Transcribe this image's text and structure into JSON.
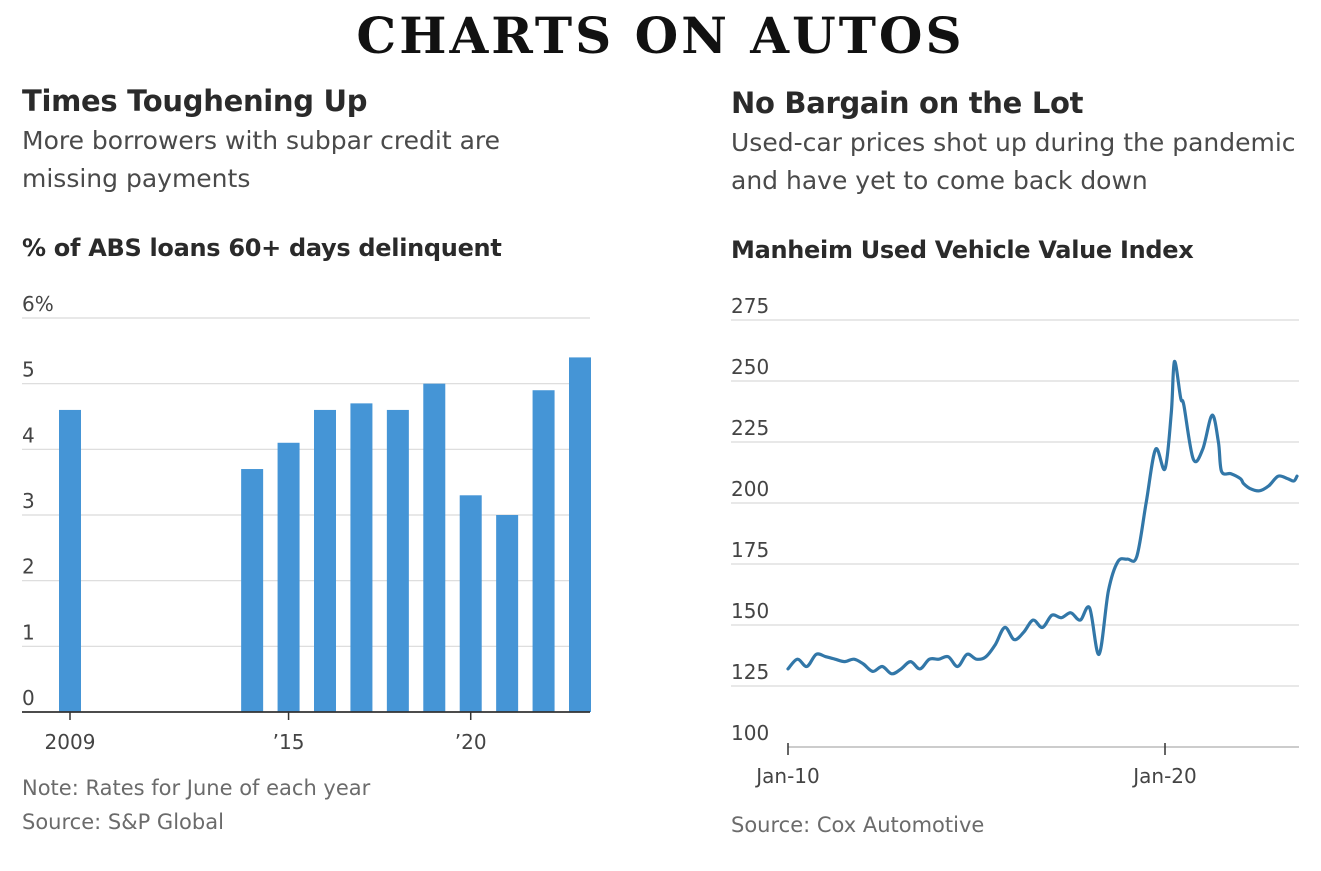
{
  "page": {
    "title": "CHARTS ON AUTOS"
  },
  "left": {
    "headline": "Times Toughening Up",
    "dek_line1": "More borrowers with subpar credit are",
    "dek_line2": "missing payments",
    "chart_label": "% of ABS loans 60+ days delinquent",
    "note": "Note: Rates for June of each year",
    "source": "Source: S&P Global"
  },
  "right": {
    "headline": "No Bargain on the Lot",
    "dek_line1": "Used-car prices shot up during the pandemic",
    "dek_line2": "and have yet to come back down",
    "chart_label": "Manheim Used Vehicle Value Index",
    "source": "Source: Cox Automotive"
  },
  "colors": {
    "bar": "#4595d6",
    "line": "#3277a8",
    "grid": "#d9d9d9",
    "axis": "#333333"
  },
  "chart_data": [
    {
      "type": "bar",
      "title": "% of ABS loans 60+ days delinquent",
      "x": [
        2009,
        2014,
        2015,
        2016,
        2017,
        2018,
        2019,
        2020,
        2021,
        2022,
        2023
      ],
      "values": [
        4.6,
        3.7,
        4.1,
        4.6,
        4.7,
        4.6,
        5.0,
        3.3,
        3.0,
        4.9,
        5.4
      ],
      "xlim": [
        2008.5,
        2023.5
      ],
      "ylim": [
        0,
        6
      ],
      "yticks": [
        0,
        1,
        2,
        3,
        4,
        5,
        6
      ],
      "ytick_labels": [
        "0",
        "1",
        "2",
        "3",
        "4",
        "5",
        "6%"
      ],
      "xticks": [
        2009,
        2015,
        2020
      ],
      "xtick_labels": [
        "2009",
        "’15",
        "’20"
      ],
      "grid": true
    },
    {
      "type": "line",
      "title": "Manheim Used Vehicle Value Index",
      "x": [
        "2010-01",
        "2010-04",
        "2010-07",
        "2010-10",
        "2011-01",
        "2011-04",
        "2011-07",
        "2011-10",
        "2012-01",
        "2012-04",
        "2012-07",
        "2012-10",
        "2013-01",
        "2013-04",
        "2013-07",
        "2013-10",
        "2014-01",
        "2014-04",
        "2014-07",
        "2014-10",
        "2015-01",
        "2015-04",
        "2015-07",
        "2015-10",
        "2016-01",
        "2016-04",
        "2016-07",
        "2016-10",
        "2017-01",
        "2017-04",
        "2017-07",
        "2017-10",
        "2018-01",
        "2018-04",
        "2018-07",
        "2018-10",
        "2019-01",
        "2019-04",
        "2019-07",
        "2019-10",
        "2020-01",
        "2020-03",
        "2020-04",
        "2020-06",
        "2020-07",
        "2020-10",
        "2021-01",
        "2021-04",
        "2021-06",
        "2021-07",
        "2021-10",
        "2022-01",
        "2022-02",
        "2022-04",
        "2022-07",
        "2022-10",
        "2023-01",
        "2023-04",
        "2023-06",
        "2023-07"
      ],
      "values": [
        132,
        136,
        133,
        138,
        137,
        136,
        135,
        136,
        134,
        131,
        133,
        130,
        132,
        135,
        132,
        136,
        136,
        137,
        133,
        138,
        136,
        137,
        142,
        149,
        144,
        147,
        152,
        149,
        154,
        153,
        155,
        152,
        157,
        138,
        164,
        176,
        177,
        178,
        200,
        222,
        214,
        237,
        258,
        243,
        240,
        218,
        222,
        236,
        225,
        213,
        212,
        210,
        208,
        206,
        205,
        207,
        211,
        210,
        209,
        211
      ],
      "ylim": [
        100,
        275
      ],
      "yticks": [
        100,
        125,
        150,
        175,
        200,
        225,
        250,
        275
      ],
      "xticks": [
        "2010-01",
        "2020-01"
      ],
      "xtick_labels": [
        "Jan-10",
        "Jan-20"
      ],
      "grid": true
    }
  ]
}
